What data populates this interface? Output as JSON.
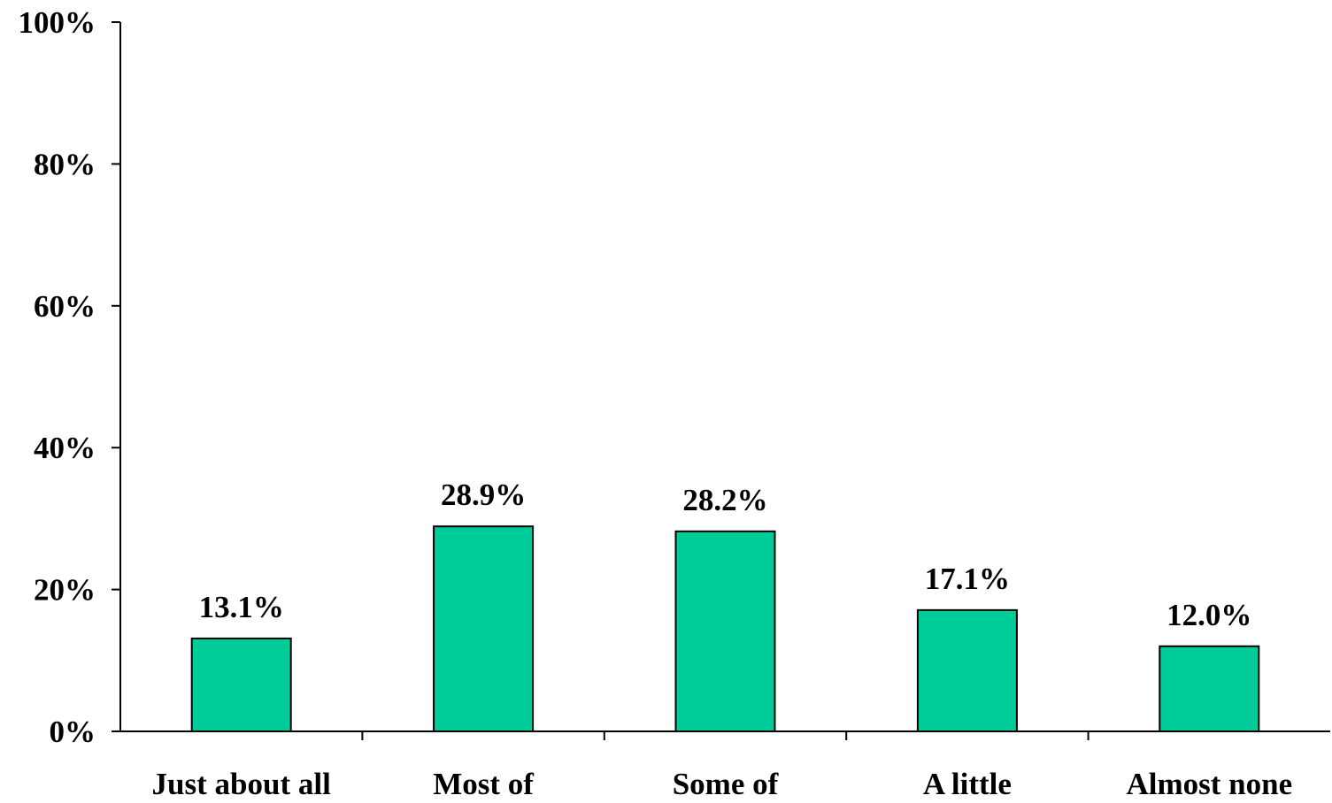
{
  "chart_data": {
    "type": "bar",
    "categories": [
      "Just about all",
      "Most of",
      "Some of",
      "A little",
      "Almost none"
    ],
    "values": [
      13.1,
      28.9,
      28.2,
      17.1,
      12.0
    ],
    "data_labels": [
      "13.1%",
      "28.9%",
      "28.2%",
      "17.1%",
      "12.0%"
    ],
    "title": "",
    "xlabel": "",
    "ylabel": "",
    "ylim": [
      0,
      100
    ],
    "yticks": [
      0,
      20,
      40,
      60,
      80,
      100
    ],
    "ytick_labels": [
      "0%",
      "20%",
      "40%",
      "60%",
      "80%",
      "100%"
    ],
    "grid": false,
    "legend": "none",
    "colors": {
      "bar": "#00CC99",
      "bar_edge": "#000000",
      "axis": "#000000",
      "text": "#000000"
    }
  }
}
